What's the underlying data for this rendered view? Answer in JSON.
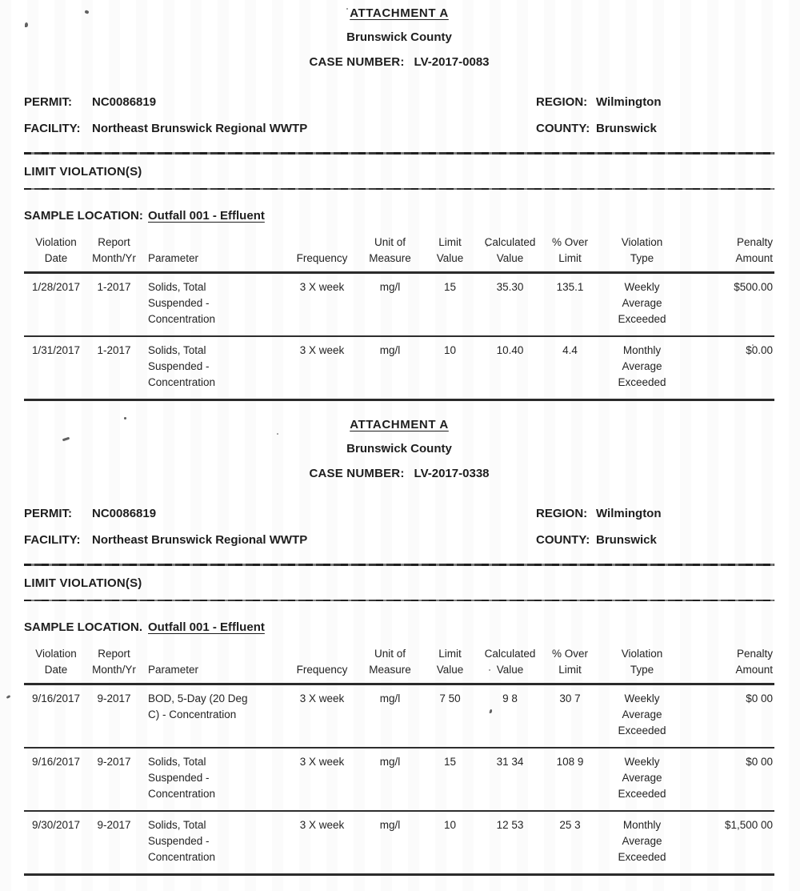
{
  "sections": [
    {
      "attachment_title": "ATTACHMENT A",
      "county_title": "Brunswick County",
      "case_number_label": "CASE NUMBER:",
      "case_number": "LV-2017-0083",
      "permit_label": "PERMIT:",
      "permit": "NC0086819",
      "region_label": "REGION:",
      "region": "Wilmington",
      "facility_label": "FACILITY:",
      "facility": "Northeast Brunswick Regional WWTP",
      "county_label": "COUNTY:",
      "county": "Brunswick",
      "limit_violations_heading": "LIMIT VIOLATION(S)",
      "sample_location_label": "SAMPLE LOCATION:",
      "sample_location": "Outfall 001 - Effluent",
      "table": {
        "headers": [
          "Violation\nDate",
          "Report\nMonth/Yr",
          "Parameter",
          "Frequency",
          "Unit of\nMeasure",
          "Limit\nValue",
          "Calculated\nValue",
          "% Over\nLimit",
          "Violation\nType",
          "Penalty\nAmount"
        ],
        "rows": [
          [
            "1/28/2017",
            "1-2017",
            "Solids, Total\nSuspended -\nConcentration",
            "3 X week",
            "mg/l",
            "15",
            "35.30",
            "135.1",
            "Weekly\nAverage\nExceeded",
            "$500.00"
          ],
          [
            "1/31/2017",
            "1-2017",
            "Solids, Total\nSuspended -\nConcentration",
            "3 X week",
            "mg/l",
            "10",
            "10.40",
            "4.4",
            "Monthly\nAverage\nExceeded",
            "$0.00"
          ]
        ]
      }
    },
    {
      "attachment_title": "ATTACHMENT A",
      "county_title": "Brunswick County",
      "case_number_label": "CASE NUMBER:",
      "case_number": "LV-2017-0338",
      "permit_label": "PERMIT:",
      "permit": "NC0086819",
      "region_label": "REGION:",
      "region": "Wilmington",
      "facility_label": "FACILITY:",
      "facility": "Northeast Brunswick Regional WWTP",
      "county_label": "COUNTY:",
      "county": "Brunswick",
      "limit_violations_heading": "LIMIT VIOLATION(S)",
      "sample_location_label": "SAMPLE LOCATION.",
      "sample_location": "Outfall 001 - Effluent",
      "table": {
        "headers": [
          "Violation\nDate",
          "Report\nMonth/Yr",
          "Parameter",
          "Frequency",
          "Unit of\nMeasure",
          "Limit\nValue",
          "Calculated\nValue",
          "% Over\nLimit",
          "Violation\nType",
          "Penalty\nAmount"
        ],
        "rows": [
          [
            "9/16/2017",
            "9-2017",
            "BOD, 5-Day (20 Deg\nC) - Concentration",
            "3 X week",
            "mg/l",
            "7 50",
            "9 8",
            "30 7",
            "Weekly\nAverage\nExceeded",
            "$0 00"
          ],
          [
            "9/16/2017",
            "9-2017",
            "Solids, Total\nSuspended -\nConcentration",
            "3 X week",
            "mg/l",
            "15",
            "31 34",
            "108 9",
            "Weekly\nAverage\nExceeded",
            "$0 00"
          ],
          [
            "9/30/2017",
            "9-2017",
            "Solids, Total\nSuspended -\nConcentration",
            "3 X week",
            "mg/l",
            "10",
            "12 53",
            "25 3",
            "Monthly\nAverage\nExceeded",
            "$1,500 00"
          ]
        ]
      }
    }
  ]
}
